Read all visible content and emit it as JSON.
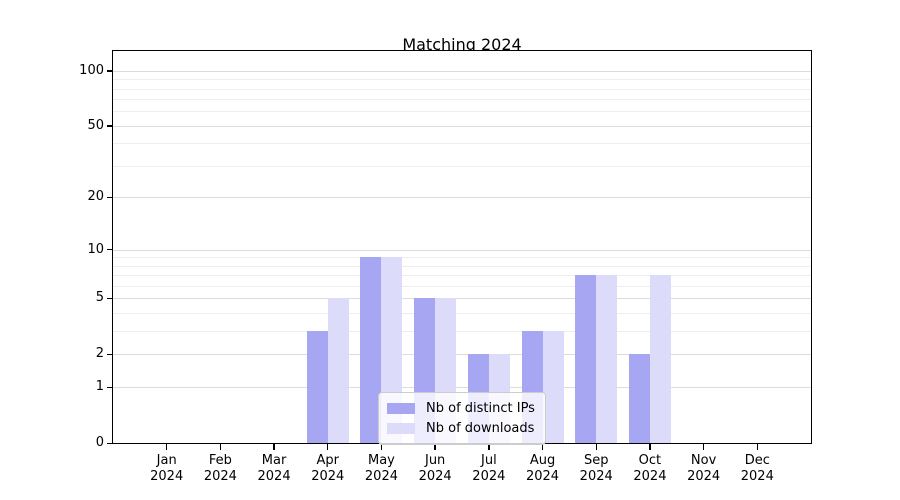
{
  "chart_data": {
    "type": "bar",
    "title": "Matching 2024",
    "categories": [
      "Jan",
      "Feb",
      "Mar",
      "Apr",
      "May",
      "Jun",
      "Jul",
      "Aug",
      "Sep",
      "Oct",
      "Nov",
      "Dec"
    ],
    "year_suffix": "2024",
    "series": [
      {
        "name": "Nb of distinct IPs",
        "color": "#a6a6f3",
        "values": [
          0,
          0,
          0,
          3,
          9,
          5,
          2,
          3,
          7,
          2,
          0,
          0
        ]
      },
      {
        "name": "Nb of downloads",
        "color": "#dcdcfa",
        "values": [
          0,
          0,
          0,
          5,
          9,
          5,
          2,
          3,
          7,
          7,
          0,
          0
        ]
      }
    ],
    "xlabel": "",
    "ylabel": "",
    "yscale": "log1p",
    "ylim": [
      0,
      128
    ],
    "y_ticks": [
      0,
      1,
      2,
      5,
      10,
      20,
      50,
      100
    ],
    "y_minor_gridlines": [
      3,
      4,
      6,
      7,
      8,
      9,
      30,
      40,
      60,
      70,
      80,
      90
    ],
    "grid": "horizontal",
    "legend_position": "lower-center-inside",
    "colors": {
      "major_grid": "#dcdcdc",
      "minor_grid": "#eeeeee",
      "spine": "#000000",
      "text": "#000000"
    }
  }
}
